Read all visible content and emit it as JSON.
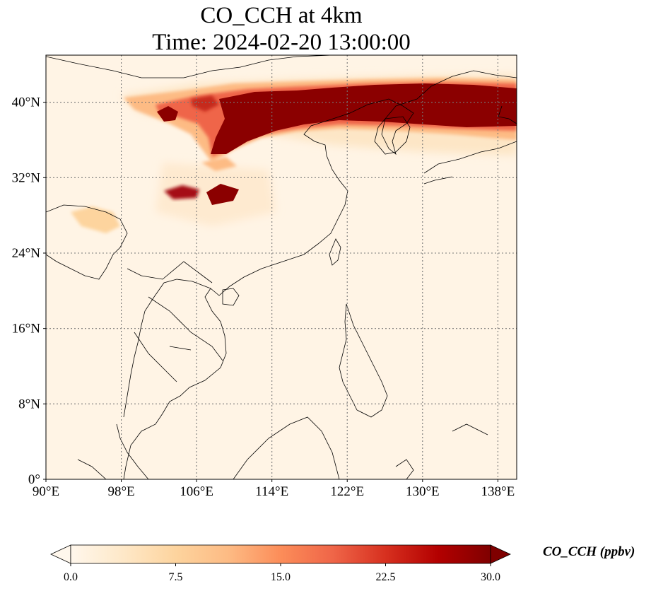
{
  "title": {
    "line1": "CO_CCH at 4km",
    "line2": "Time: 2024-02-20 13:00:00"
  },
  "map": {
    "lon_range": [
      90,
      140
    ],
    "lat_range": [
      0,
      45
    ],
    "lon_ticks": [
      {
        "value": 90,
        "label": "90°E"
      },
      {
        "value": 98,
        "label": "98°E"
      },
      {
        "value": 106,
        "label": "106°E"
      },
      {
        "value": 114,
        "label": "114°E"
      },
      {
        "value": 122,
        "label": "122°E"
      },
      {
        "value": 130,
        "label": "130°E"
      },
      {
        "value": 138,
        "label": "138°E"
      }
    ],
    "lat_ticks": [
      {
        "value": 0,
        "label": "0°"
      },
      {
        "value": 8,
        "label": "8°N"
      },
      {
        "value": 16,
        "label": "16°N"
      },
      {
        "value": 24,
        "label": "24°N"
      },
      {
        "value": 32,
        "label": "32°N"
      },
      {
        "value": 40,
        "label": "40°N"
      }
    ],
    "gridlines": true
  },
  "colorbar": {
    "label": "CO_CCH (ppbv)",
    "colormap": "OrRd",
    "min": 0.0,
    "max": 30.0,
    "extend": "both",
    "ticks": [
      {
        "value": 0.0,
        "label": "0.0"
      },
      {
        "value": 7.5,
        "label": "7.5"
      },
      {
        "value": 15.0,
        "label": "15.0"
      },
      {
        "value": 22.5,
        "label": "22.5"
      },
      {
        "value": 30.0,
        "label": "30.0"
      }
    ],
    "colors": [
      "#fff7ec",
      "#fee8c8",
      "#fdd49e",
      "#fdbb84",
      "#fc8d59",
      "#ef6548",
      "#d7301f",
      "#b30000",
      "#7f0000"
    ]
  }
}
